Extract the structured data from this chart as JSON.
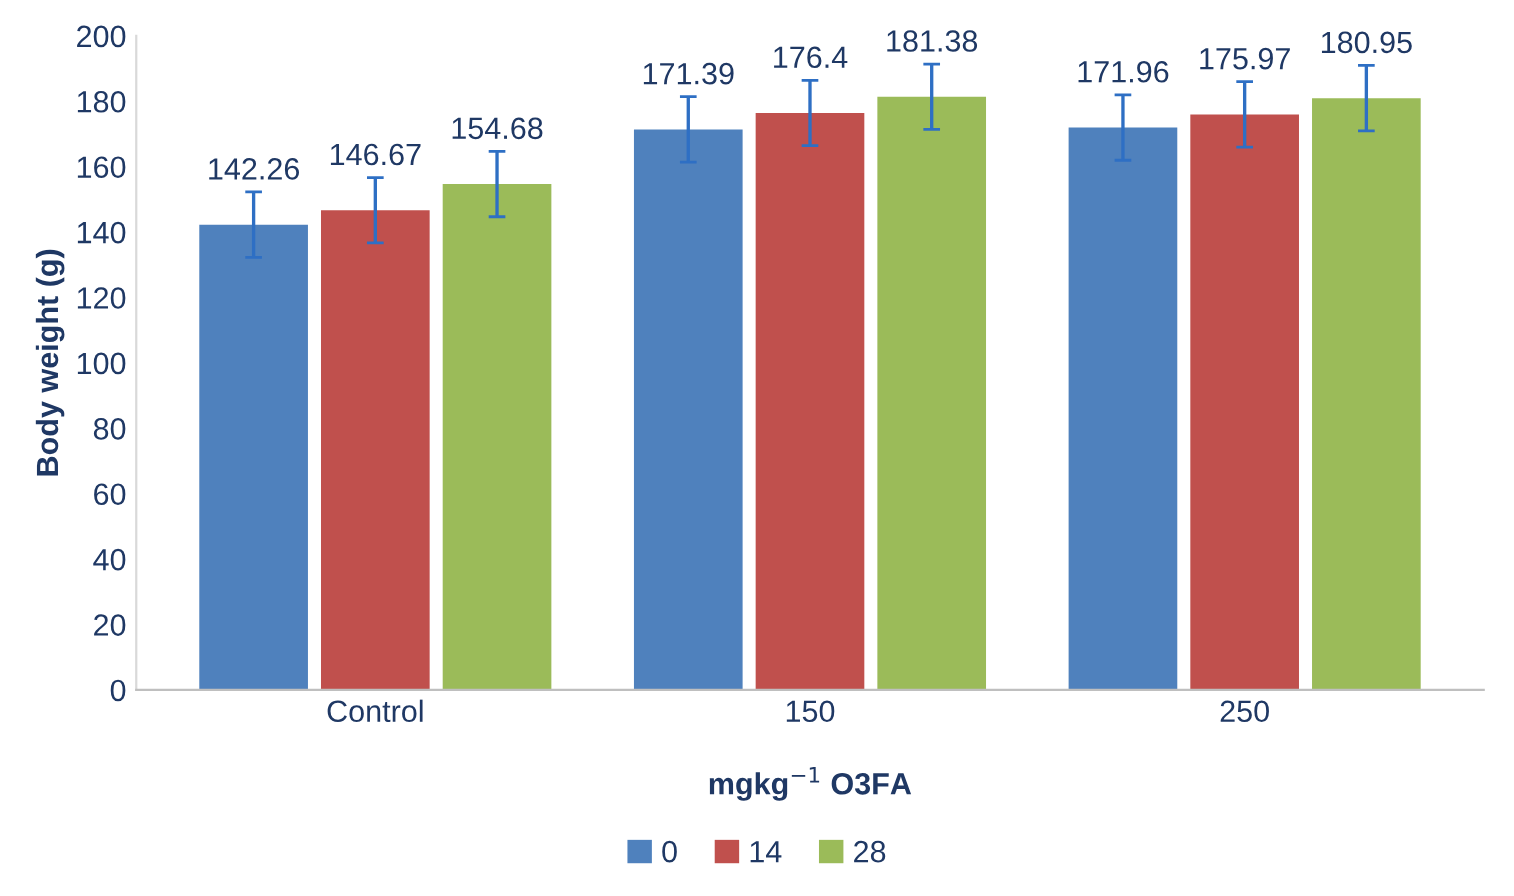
{
  "chart_data": {
    "type": "bar",
    "xlabel": "mgkg$^{−1}$ O3FA",
    "ylabel": "Body weight (g)",
    "categories": [
      "Control",
      "150",
      "250"
    ],
    "series": [
      {
        "name": "0",
        "color": "#4f81bd",
        "values": [
          142.26,
          171.39,
          171.96
        ],
        "errors": [
          10,
          10,
          10
        ]
      },
      {
        "name": "14",
        "color": "#c0504d",
        "values": [
          146.67,
          176.4,
          175.97
        ],
        "errors": [
          10,
          10,
          10
        ]
      },
      {
        "name": "28",
        "color": "#9bbb59",
        "values": [
          154.68,
          181.38,
          180.95
        ],
        "errors": [
          10,
          10,
          10
        ]
      }
    ],
    "ylim": [
      0,
      200
    ],
    "yticks": [
      0,
      20,
      40,
      60,
      80,
      100,
      120,
      140,
      160,
      180,
      200
    ],
    "data_labels": true,
    "grid": false,
    "legend": "bottom"
  }
}
